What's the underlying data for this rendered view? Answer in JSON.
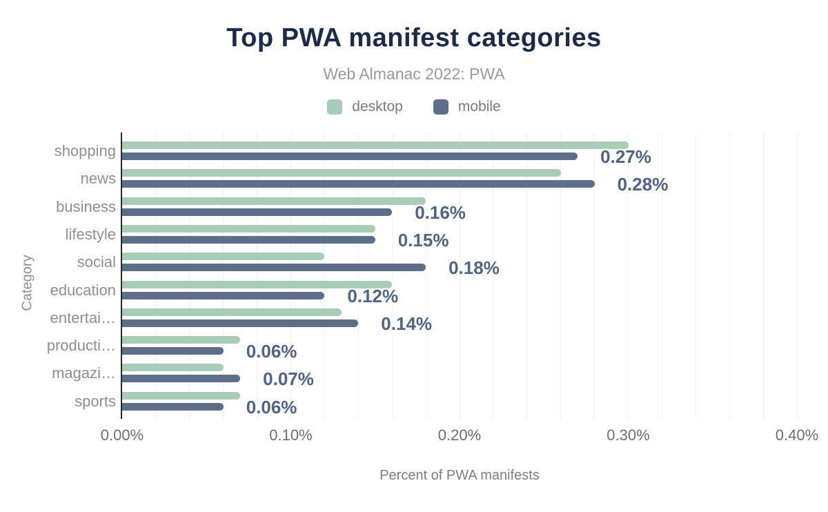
{
  "title": "Top PWA manifest categories",
  "subtitle": "Web Almanac 2022: PWA",
  "colors": {
    "title": "#1b2b4a",
    "subtitle": "#9a9a9a",
    "axis_line": "#2b2b2b",
    "gridline": "#f2f2f2",
    "data_label": "#4e6586",
    "category_label": "#8f8f8f",
    "tick_label": "#6e6e6e"
  },
  "chart_data": {
    "type": "bar",
    "orientation": "horizontal",
    "title": "Top PWA manifest categories",
    "subtitle": "Web Almanac 2022: PWA",
    "categories": [
      "shopping",
      "news",
      "business",
      "lifestyle",
      "social",
      "education",
      "entertai…",
      "producti…",
      "magazi…",
      "sports"
    ],
    "series": [
      {
        "name": "desktop",
        "color": "#a8cdb7",
        "values": [
          0.3,
          0.26,
          0.18,
          0.15,
          0.12,
          0.16,
          0.13,
          0.07,
          0.06,
          0.07
        ]
      },
      {
        "name": "mobile",
        "color": "#5d6e8a",
        "values": [
          0.27,
          0.28,
          0.16,
          0.15,
          0.18,
          0.12,
          0.14,
          0.06,
          0.07,
          0.06
        ]
      }
    ],
    "data_labels": [
      "0.27%",
      "0.28%",
      "0.16%",
      "0.15%",
      "0.18%",
      "0.12%",
      "0.14%",
      "0.06%",
      "0.07%",
      "0.06%"
    ],
    "data_labels_series": "mobile",
    "xlabel": "Percent of PWA manifests",
    "ylabel": "Category",
    "x_ticks": [
      "0.00%",
      "0.10%",
      "0.20%",
      "0.30%",
      "0.40%"
    ],
    "x_tick_values": [
      0.0,
      0.1,
      0.2,
      0.3,
      0.4
    ],
    "xlim": [
      0,
      0.4
    ],
    "grid": "vertical, minor lines every 0.02%",
    "legend_position": "top-center"
  }
}
